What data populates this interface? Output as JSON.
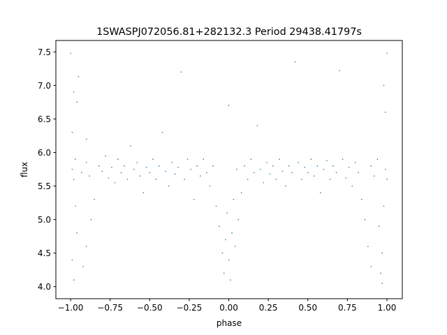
{
  "chart_data": {
    "type": "scatter",
    "title": "1SWASPJ072056.81+282132.3 Period 29438.41797s",
    "xlabel": "phase",
    "ylabel": "flux",
    "xlim": [
      -1.093,
      1.097
    ],
    "ylim": [
      3.82,
      7.67
    ],
    "grid": false,
    "xticks": [
      -1.0,
      -0.75,
      -0.5,
      -0.25,
      0.0,
      0.25,
      0.5,
      0.75,
      1.0
    ],
    "xtick_labels": [
      "−1.00",
      "−0.75",
      "−0.50",
      "−0.25",
      "0.00",
      "0.25",
      "0.50",
      "0.75",
      "1.00"
    ],
    "yticks": [
      4.0,
      4.5,
      5.0,
      5.5,
      6.0,
      6.5,
      7.0,
      7.5
    ],
    "ytick_labels": [
      "4.0",
      "4.5",
      "5.0",
      "5.5",
      "6.0",
      "6.5",
      "7.0",
      "7.5"
    ],
    "marker_color": "#1f77b4",
    "series": [
      {
        "points": [
          [
            -0.99,
            5.75
          ],
          [
            -0.98,
            5.6
          ],
          [
            -0.97,
            5.9
          ],
          [
            -0.99,
            4.4
          ],
          [
            -0.98,
            4.1
          ],
          [
            -0.96,
            4.8
          ],
          [
            -0.97,
            5.2
          ],
          [
            -0.99,
            6.3
          ],
          [
            -0.98,
            6.9
          ],
          [
            -0.96,
            6.75
          ],
          [
            -1.0,
            7.48
          ],
          [
            -0.95,
            7.13
          ],
          [
            -0.93,
            5.7
          ],
          [
            -0.9,
            5.85
          ],
          [
            -0.88,
            5.65
          ],
          [
            -0.92,
            4.3
          ],
          [
            -0.9,
            4.6
          ],
          [
            -0.87,
            5.0
          ],
          [
            -0.85,
            5.3
          ],
          [
            -0.9,
            6.2
          ],
          [
            -0.82,
            5.8
          ],
          [
            -0.8,
            5.72
          ],
          [
            -0.78,
            5.95
          ],
          [
            -0.76,
            5.62
          ],
          [
            -0.74,
            5.78
          ],
          [
            -0.72,
            5.55
          ],
          [
            -0.7,
            5.9
          ],
          [
            -0.68,
            5.7
          ],
          [
            -0.66,
            5.8
          ],
          [
            -0.64,
            5.6
          ],
          [
            -0.62,
            6.1
          ],
          [
            -0.6,
            5.75
          ],
          [
            -0.58,
            5.85
          ],
          [
            -0.56,
            5.65
          ],
          [
            -0.54,
            5.4
          ],
          [
            -0.52,
            5.78
          ],
          [
            -0.5,
            5.7
          ],
          [
            -0.48,
            5.9
          ],
          [
            -0.46,
            5.6
          ],
          [
            -0.44,
            5.8
          ],
          [
            -0.42,
            6.3
          ],
          [
            -0.4,
            5.72
          ],
          [
            -0.38,
            5.5
          ],
          [
            -0.36,
            5.85
          ],
          [
            -0.34,
            5.68
          ],
          [
            -0.32,
            5.78
          ],
          [
            -0.3,
            7.2
          ],
          [
            -0.28,
            5.6
          ],
          [
            -0.26,
            5.9
          ],
          [
            -0.24,
            5.75
          ],
          [
            -0.22,
            5.3
          ],
          [
            -0.2,
            5.8
          ],
          [
            -0.18,
            5.65
          ],
          [
            -0.16,
            5.9
          ],
          [
            -0.14,
            5.7
          ],
          [
            -0.12,
            5.5
          ],
          [
            -0.1,
            5.8
          ],
          [
            -0.08,
            5.2
          ],
          [
            -0.06,
            4.9
          ],
          [
            -0.04,
            4.5
          ],
          [
            -0.03,
            4.2
          ],
          [
            -0.02,
            4.7
          ],
          [
            -0.01,
            5.1
          ],
          [
            0.0,
            4.4
          ],
          [
            0.01,
            4.1
          ],
          [
            0.02,
            4.8
          ],
          [
            0.03,
            5.3
          ],
          [
            0.04,
            4.6
          ],
          [
            0.06,
            5.0
          ],
          [
            0.08,
            5.4
          ],
          [
            0.0,
            6.7
          ],
          [
            0.05,
            5.75
          ],
          [
            0.1,
            5.8
          ],
          [
            0.12,
            5.6
          ],
          [
            0.14,
            5.9
          ],
          [
            0.16,
            5.7
          ],
          [
            0.18,
            6.4
          ],
          [
            0.2,
            5.75
          ],
          [
            0.22,
            5.55
          ],
          [
            0.24,
            5.85
          ],
          [
            0.26,
            5.68
          ],
          [
            0.28,
            5.8
          ],
          [
            0.3,
            5.6
          ],
          [
            0.32,
            5.9
          ],
          [
            0.34,
            5.72
          ],
          [
            0.36,
            5.5
          ],
          [
            0.38,
            5.8
          ],
          [
            0.4,
            5.7
          ],
          [
            0.42,
            7.35
          ],
          [
            0.44,
            5.85
          ],
          [
            0.46,
            5.6
          ],
          [
            0.48,
            5.78
          ],
          [
            0.5,
            5.7
          ],
          [
            0.52,
            5.9
          ],
          [
            0.54,
            5.65
          ],
          [
            0.56,
            5.8
          ],
          [
            0.58,
            5.4
          ],
          [
            0.6,
            5.75
          ],
          [
            0.62,
            5.88
          ],
          [
            0.64,
            5.6
          ],
          [
            0.66,
            5.8
          ],
          [
            0.68,
            5.7
          ],
          [
            0.7,
            7.22
          ],
          [
            0.72,
            5.9
          ],
          [
            0.74,
            5.62
          ],
          [
            0.76,
            5.78
          ],
          [
            0.78,
            5.5
          ],
          [
            0.8,
            5.85
          ],
          [
            0.82,
            5.7
          ],
          [
            0.84,
            5.3
          ],
          [
            0.86,
            5.0
          ],
          [
            0.88,
            4.6
          ],
          [
            0.9,
            4.3
          ],
          [
            0.9,
            5.8
          ],
          [
            0.92,
            5.65
          ],
          [
            0.94,
            5.9
          ],
          [
            0.95,
            4.9
          ],
          [
            0.96,
            4.2
          ],
          [
            0.97,
            4.5
          ],
          [
            0.98,
            5.2
          ],
          [
            0.99,
            5.75
          ],
          [
            1.0,
            5.6
          ],
          [
            0.99,
            6.6
          ],
          [
            0.98,
            7.0
          ],
          [
            1.0,
            7.48
          ],
          [
            0.97,
            4.05
          ]
        ]
      }
    ]
  }
}
